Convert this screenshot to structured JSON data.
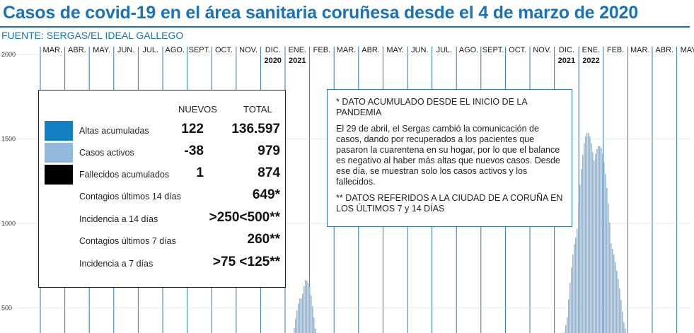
{
  "header": {
    "title": "Casos de covid-19 en el área sanitaria coruñesa desde el 4 de marzo de 2020",
    "source": "FUENTE: SERGAS/EL IDEAL GALLEGO"
  },
  "colors": {
    "accent": "#1a73b6",
    "altas": "#1380c3",
    "activos": "#92b9dc",
    "fallecidos": "#000000",
    "gridline": "#2a78b4"
  },
  "legend": {
    "col_new": "NUEVOS",
    "col_total": "TOTAL",
    "rows": [
      {
        "label": "Altas acumuladas",
        "new": "122",
        "total": "136.597",
        "swatch": "altas"
      },
      {
        "label": "Casos activos",
        "new": "-38",
        "total": "979",
        "swatch": "activos"
      },
      {
        "label": "Fallecidos acumulados",
        "new": "1",
        "total": "874",
        "swatch": "fallecidos"
      },
      {
        "label": "Contagios últimos 14 días",
        "new": "",
        "total": "649*"
      },
      {
        "label": "Incidencia a 14 días",
        "new": "",
        "total": ">250<500**"
      },
      {
        "label": "Contagios últimos 7 días",
        "new": "",
        "total": "260**"
      },
      {
        "label": "Incidencia a 7 días",
        "new": "",
        "total": ">75 <125**"
      }
    ]
  },
  "notes": {
    "line1": "* DATO ACUMULADO DESDE EL INICIO DE LA PANDEMIA",
    "line2": "El 29 de abril, el Sergas cambió la comunicación de casos, dando por recuperados a los pacientes que pasaron la cuarentena en su hogar, por lo que el balance es negativo al haber más altas que nuevos casos. Desde ese día, se muestran solo los casos activos y los fallecidos.",
    "line3": "** DATOS REFERIDOS A LA CIUDAD DE A CORUÑA EN LOS ÚLTIMOS 7 y 14 DÍAS"
  },
  "chart_data": {
    "type": "area",
    "ylim": [
      0,
      2000
    ],
    "yticks": [
      500,
      1000,
      1500,
      2000
    ],
    "grid": true,
    "months": [
      "MAR.",
      "ABR.",
      "MAY.",
      "JUN.",
      "JUL.",
      "AGO.",
      "SEPT.",
      "OCT.",
      "NOV.",
      "DIC.",
      "ENE.",
      "FEB.",
      "MAR.",
      "ABR.",
      "MAY.",
      "JUN.",
      "JUL.",
      "AGO.",
      "SEPT.",
      "OCT.",
      "NOV.",
      "DIC.",
      "ENE.",
      "FEB.",
      "MAR.",
      "ABR.",
      "MAY.",
      "JUN."
    ],
    "year_labels": [
      {
        "month_index": 9,
        "text": "2020"
      },
      {
        "month_index": 10,
        "text": "2021"
      },
      {
        "month_index": 21,
        "text": "2021"
      },
      {
        "month_index": 22,
        "text": "2022"
      }
    ],
    "series": [
      {
        "name": "Casos activos",
        "points": [
          [
            10.0,
            80
          ],
          [
            10.3,
            300
          ],
          [
            10.6,
            600
          ],
          [
            10.8,
            650
          ],
          [
            11.0,
            560
          ],
          [
            11.2,
            380
          ],
          [
            11.5,
            200
          ],
          [
            11.8,
            90
          ],
          [
            12.2,
            40
          ],
          [
            13.0,
            30
          ],
          [
            14.0,
            40
          ],
          [
            15.0,
            60
          ],
          [
            16.0,
            120
          ],
          [
            16.5,
            260
          ],
          [
            16.8,
            330
          ],
          [
            17.0,
            340
          ],
          [
            17.3,
            310
          ],
          [
            17.7,
            180
          ],
          [
            18.2,
            80
          ],
          [
            19.0,
            50
          ],
          [
            20.0,
            60
          ],
          [
            21.0,
            120
          ],
          [
            21.5,
            400
          ],
          [
            21.8,
            900
          ],
          [
            22.0,
            1200
          ],
          [
            22.2,
            1350
          ],
          [
            22.4,
            1450
          ],
          [
            22.6,
            1520
          ],
          [
            22.8,
            1380
          ],
          [
            23.0,
            1250
          ],
          [
            23.2,
            1100
          ],
          [
            23.5,
            700
          ],
          [
            23.8,
            400
          ],
          [
            24.0,
            330
          ],
          [
            24.3,
            290
          ],
          [
            24.6,
            200
          ],
          [
            24.9,
            150
          ],
          [
            25.2,
            100
          ],
          [
            25.6,
            80
          ],
          [
            26.0,
            70
          ],
          [
            26.5,
            60
          ],
          [
            27.0,
            50
          ],
          [
            27.3,
            60
          ],
          [
            27.6,
            110
          ]
        ]
      }
    ]
  }
}
